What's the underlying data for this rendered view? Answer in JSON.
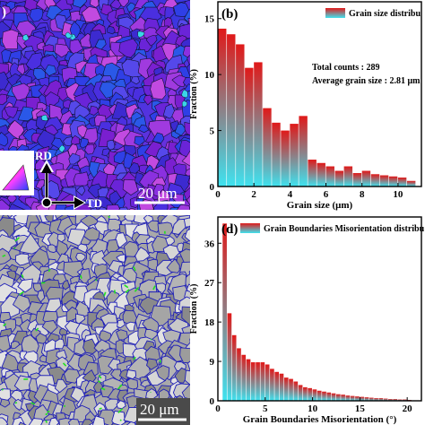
{
  "panels": {
    "a": {
      "label": ")",
      "scale_bar": "20 μm",
      "axis_rd": "RD",
      "axis_td": "TD"
    },
    "c": {
      "scale_bar": "20 μm"
    }
  },
  "chart_data": [
    {
      "panel": "b",
      "type": "bar",
      "label": "(b)",
      "legend": "Grain size distribu",
      "annotations": [
        "Total counts : 289",
        "Average grain size : 2.81 μm"
      ],
      "xlabel": "Grain size (μm)",
      "ylabel": "Fraction (%)",
      "xlim": [
        0,
        11.3
      ],
      "ylim": [
        0,
        16.5
      ],
      "xticks": [
        0,
        2,
        4,
        6,
        8,
        10
      ],
      "yticks": [
        0,
        5,
        10,
        15
      ],
      "bin_width": 0.5,
      "x": [
        0.5,
        1.0,
        1.5,
        2.0,
        2.5,
        3.0,
        3.5,
        4.0,
        4.5,
        5.0,
        5.5,
        6.0,
        6.5,
        7.0,
        7.5,
        8.0,
        8.5,
        9.0,
        9.5,
        10.0,
        10.5,
        11.0
      ],
      "values": [
        14.1,
        13.6,
        12.7,
        10.6,
        11.1,
        7.0,
        5.7,
        5.0,
        5.6,
        6.3,
        2.4,
        2.1,
        1.8,
        1.4,
        1.8,
        1.2,
        1.4,
        1.1,
        1.0,
        0.9,
        0.8,
        0.5
      ],
      "grid": false
    },
    {
      "panel": "d",
      "type": "bar",
      "label": "(d)",
      "legend": "Grain Boundaries Misorientation distribu",
      "xlabel": "Grain Boundaries Misorientation (°)",
      "ylabel": "Fraction (%)",
      "xlim": [
        0,
        21.5
      ],
      "ylim": [
        0,
        42
      ],
      "xticks": [
        0,
        5,
        10,
        15,
        20
      ],
      "yticks": [
        0,
        9,
        18,
        27,
        36
      ],
      "bin_width": 0.5,
      "x": [
        1.0,
        1.5,
        2.0,
        2.5,
        3.0,
        3.5,
        4.0,
        4.5,
        5.0,
        5.5,
        6.0,
        6.5,
        7.0,
        7.5,
        8.0,
        8.5,
        9.0,
        9.5,
        10.0,
        10.5,
        11.0,
        11.5,
        12.0,
        12.5,
        13.0,
        13.5,
        14.0,
        14.5,
        15.0,
        15.5,
        16.0,
        16.5,
        17.0,
        17.5,
        18.0,
        18.5,
        19.0,
        19.5,
        20.0,
        20.5
      ],
      "values": [
        40.5,
        20.0,
        15.0,
        12.0,
        10.5,
        9.5,
        8.8,
        8.8,
        8.8,
        8.3,
        7.3,
        6.6,
        6.2,
        5.3,
        5.0,
        4.4,
        3.6,
        3.1,
        2.9,
        2.6,
        2.3,
        2.1,
        1.9,
        1.7,
        1.5,
        1.4,
        1.2,
        1.1,
        1.0,
        0.9,
        0.8,
        0.7,
        0.6,
        0.6,
        0.5,
        0.4,
        0.4,
        0.3,
        0.3,
        0.2
      ],
      "grid": false
    }
  ],
  "colors": {
    "bar_top": "#e01919",
    "bar_bottom": "#3ee3f0",
    "ebsd_blue": "#3a2fd6",
    "ebsd_purple": "#9a2ce0",
    "kam_gray": "#b7b7b7",
    "boundary_blue": "#1f1fb8",
    "boundary_green": "#22e022"
  }
}
